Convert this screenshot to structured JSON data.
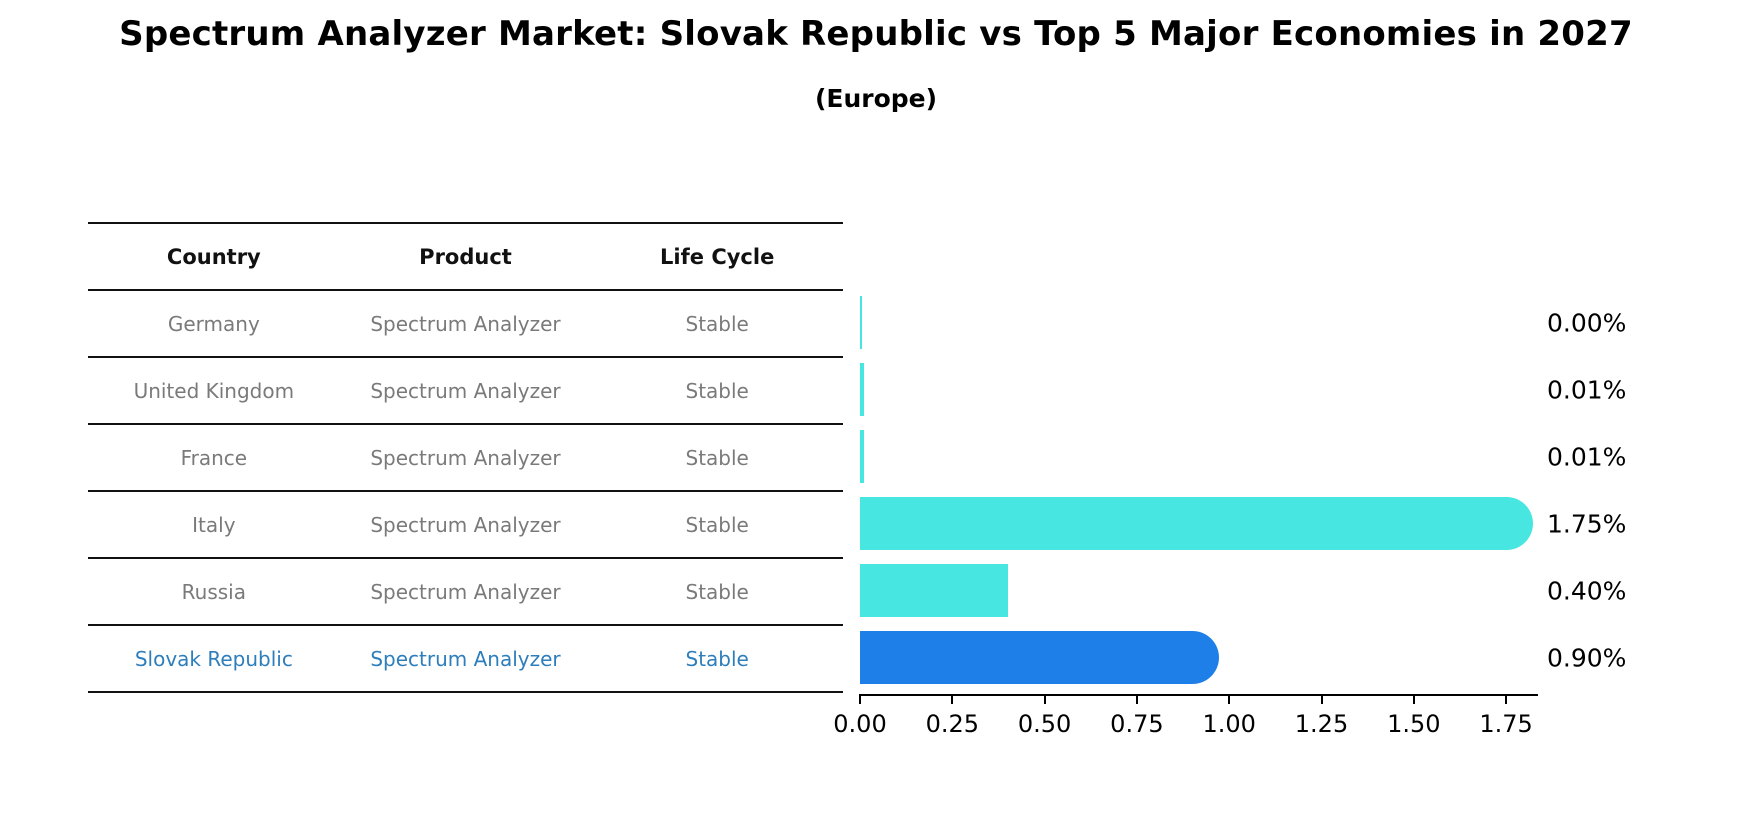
{
  "title": "Spectrum Analyzer Market: Slovak Republic vs Top 5 Major Economies in 2027",
  "subtitle": "(Europe)",
  "table": {
    "headers": [
      "Country",
      "Product",
      "Life Cycle"
    ]
  },
  "rows": [
    {
      "country": "Germany",
      "product": "Spectrum Analyzer",
      "life_cycle": "Stable",
      "value": 0.0,
      "value_label": "0.00%",
      "highlight": false,
      "rounded": false,
      "dotted": false
    },
    {
      "country": "United Kingdom",
      "product": "Spectrum Analyzer",
      "life_cycle": "Stable",
      "value": 0.01,
      "value_label": "0.01%",
      "highlight": false,
      "rounded": false,
      "dotted": false
    },
    {
      "country": "France",
      "product": "Spectrum Analyzer",
      "life_cycle": "Stable",
      "value": 0.01,
      "value_label": "0.01%",
      "highlight": false,
      "rounded": false,
      "dotted": false
    },
    {
      "country": "Italy",
      "product": "Spectrum Analyzer",
      "life_cycle": "Stable",
      "value": 1.75,
      "value_label": "1.75%",
      "highlight": false,
      "rounded": true,
      "dotted": false
    },
    {
      "country": "Russia",
      "product": "Spectrum Analyzer",
      "life_cycle": "Stable",
      "value": 0.4,
      "value_label": "0.40%",
      "highlight": false,
      "rounded": false,
      "dotted": false
    },
    {
      "country": "Slovak Republic",
      "product": "Spectrum Analyzer",
      "life_cycle": "Stable",
      "value": 0.9,
      "value_label": "0.90%",
      "highlight": true,
      "rounded": true,
      "dotted": true
    }
  ],
  "chart_data": {
    "type": "bar",
    "orientation": "horizontal",
    "title": "Spectrum Analyzer Market: Slovak Republic vs Top 5 Major Economies in 2027",
    "subtitle": "(Europe)",
    "categories": [
      "Germany",
      "United Kingdom",
      "France",
      "Italy",
      "Russia",
      "Slovak Republic"
    ],
    "values": [
      0.0,
      0.01,
      0.01,
      1.75,
      0.4,
      0.9
    ],
    "value_labels": [
      "0.00%",
      "0.01%",
      "0.01%",
      "1.75%",
      "0.40%",
      "0.90%"
    ],
    "xlabel": "",
    "ylabel": "",
    "xlim": [
      0,
      1.83
    ],
    "x_ticks": [
      "0.00",
      "0.25",
      "0.50",
      "0.75",
      "1.00",
      "1.25",
      "1.50",
      "1.75"
    ],
    "grid": false,
    "legend": false
  },
  "colors": {
    "default_bar": "#47E6E0",
    "highlight_bar": "#1E7FE8",
    "highlight_text": "#2e7ebc",
    "row_text": "#7a7a7a",
    "header_text": "#111111",
    "axis": "#000000"
  }
}
